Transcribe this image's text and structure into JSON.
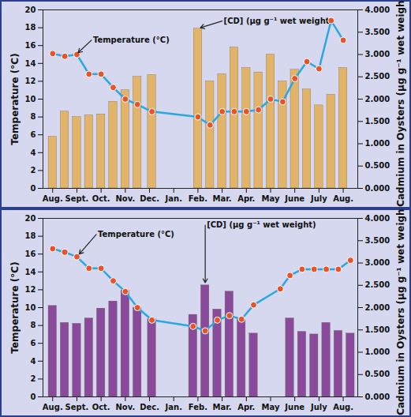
{
  "chart_data": [
    {
      "type": "combo",
      "x": [
        0,
        0.5,
        1,
        1.5,
        2,
        2.5,
        3,
        3.5,
        4.1,
        6.0,
        6.5,
        7.0,
        7.5,
        8.0,
        8.5,
        9.0,
        9.5,
        10.0,
        10.5,
        11.0,
        11.5,
        12.0
      ],
      "xlim": [
        -0.4,
        12.6
      ],
      "xticks": [
        {
          "value": 0,
          "label": "Aug."
        },
        {
          "value": 1,
          "label": "Sept."
        },
        {
          "value": 2,
          "label": "Oct."
        },
        {
          "value": 3,
          "label": "Nov."
        },
        {
          "value": 4,
          "label": "Dec."
        },
        {
          "value": 5,
          "label": "Jan."
        },
        {
          "value": 6,
          "label": "Feb."
        },
        {
          "value": 7,
          "label": "Mar."
        },
        {
          "value": 8,
          "label": "Apr."
        },
        {
          "value": 9,
          "label": "May"
        },
        {
          "value": 10,
          "label": "June"
        },
        {
          "value": 11,
          "label": "July"
        },
        {
          "value": 12,
          "label": "Aug."
        }
      ],
      "ylabel": "Temperature (°C)",
      "ylim": [
        0,
        20
      ],
      "yticks": [
        0,
        2,
        4,
        6,
        8,
        10,
        12,
        14,
        16,
        18,
        20
      ],
      "y2label": "Cadmium in Oysters (µg g⁻¹ wet weight)",
      "y2lim": [
        0,
        4
      ],
      "y2ticks": [
        {
          "value": 0,
          "label": "0.000"
        },
        {
          "value": 0.5,
          "label": "0.500"
        },
        {
          "value": 1,
          "label": "1.000"
        },
        {
          "value": 1.5,
          "label": "1.500"
        },
        {
          "value": 2,
          "label": "2.000"
        },
        {
          "value": 2.5,
          "label": "2.500"
        },
        {
          "value": 3,
          "label": "3.000"
        },
        {
          "value": 3.5,
          "label": "3.500"
        },
        {
          "value": 4,
          "label": "4.000"
        }
      ],
      "series": [
        {
          "name": "[CD] (µg g⁻¹ wet weight)",
          "type": "bar",
          "axis": "y2",
          "color": "#e2b46a",
          "values": [
            1.16,
            1.72,
            1.6,
            1.64,
            1.66,
            1.94,
            2.2,
            2.5,
            2.54,
            3.58,
            2.4,
            2.56,
            3.16,
            2.7,
            2.6,
            3.0,
            2.4,
            2.66,
            2.22,
            1.86,
            2.1,
            2.7
          ]
        },
        {
          "name": "Temperature (°C)",
          "type": "line",
          "color": "#2aa8df",
          "marker": "circle",
          "line_style": "solid",
          "values": [
            15.1,
            14.8,
            15.0,
            12.8,
            12.8,
            11.3,
            10.0,
            9.4,
            8.6,
            8.0,
            7.1,
            8.6,
            8.6,
            8.6,
            8.8,
            10.0,
            9.7,
            12.3,
            14.2,
            13.4,
            18.8,
            16.6
          ]
        }
      ],
      "annotations": [
        {
          "text": "Temperature (°C)",
          "axis": "y",
          "x": 1.6,
          "y": 16.6,
          "arrow_x": 1.05,
          "arrow_y": 15.2
        },
        {
          "text": "[CD] (µg g⁻¹ wet weight)",
          "axis": "y2",
          "x": 7.0,
          "y": 3.75,
          "arrow_x": 6.1,
          "arrow_y": 3.6
        }
      ]
    },
    {
      "type": "combo",
      "x": [
        0,
        0.5,
        1,
        1.5,
        2,
        2.5,
        3,
        3.5,
        4.1,
        5.8,
        6.3,
        6.8,
        7.3,
        7.8,
        8.3,
        9.4,
        9.8,
        10.3,
        10.8,
        11.3,
        11.8,
        12.3
      ],
      "xlim": [
        -0.4,
        12.6
      ],
      "xticks": [
        {
          "value": 0,
          "label": "Aug."
        },
        {
          "value": 1,
          "label": "Sept."
        },
        {
          "value": 2,
          "label": "Oct."
        },
        {
          "value": 3,
          "label": "Nov."
        },
        {
          "value": 4,
          "label": "Dec."
        },
        {
          "value": 5,
          "label": "Jan."
        },
        {
          "value": 6,
          "label": "Feb."
        },
        {
          "value": 7,
          "label": "Mar."
        },
        {
          "value": 8,
          "label": "Apr."
        },
        {
          "value": 9,
          "label": "May"
        },
        {
          "value": 10,
          "label": "June"
        },
        {
          "value": 11,
          "label": "July"
        },
        {
          "value": 12,
          "label": "Aug."
        }
      ],
      "ylabel": "Temperature (°C)",
      "ylim": [
        0,
        20
      ],
      "yticks": [
        0,
        2,
        4,
        6,
        8,
        10,
        12,
        14,
        16,
        18,
        20
      ],
      "y2label": "Cadmium in Oysters (µg g⁻¹ wet weight)",
      "y2lim": [
        0,
        4
      ],
      "y2ticks": [
        {
          "value": 0,
          "label": "0.000"
        },
        {
          "value": 0.5,
          "label": "0.500"
        },
        {
          "value": 1,
          "label": "1.000"
        },
        {
          "value": 1.5,
          "label": "1.500"
        },
        {
          "value": 2,
          "label": "2.000"
        },
        {
          "value": 2.5,
          "label": "2.500"
        },
        {
          "value": 3,
          "label": "3.000"
        },
        {
          "value": 3.5,
          "label": "3.500"
        },
        {
          "value": 4,
          "label": "4.000"
        }
      ],
      "series": [
        {
          "name": "[CD] (µg g⁻¹ wet weight)",
          "type": "bar",
          "axis": "y2",
          "color": "#8a4a9c",
          "values": [
            2.04,
            1.66,
            1.64,
            1.76,
            1.98,
            2.14,
            2.38,
            2.0,
            1.74,
            1.84,
            2.5,
            1.96,
            2.36,
            1.72,
            1.42,
            null,
            1.76,
            1.46,
            1.4,
            1.66,
            1.48,
            1.42
          ]
        },
        {
          "name": "Temperature (°C)",
          "type": "line",
          "color": "#2aa8df",
          "marker": "circle",
          "line_style": "solid",
          "values": [
            16.6,
            16.2,
            15.7,
            14.4,
            14.4,
            13.0,
            11.8,
            10.0,
            8.6,
            7.9,
            7.4,
            8.6,
            9.1,
            8.7,
            10.3,
            12.1,
            13.6,
            14.3,
            14.3,
            14.3,
            14.3,
            15.3
          ]
        }
      ],
      "annotations": [
        {
          "text": "Temperature (°C)",
          "axis": "y",
          "x": 1.8,
          "y": 18.2,
          "arrow_x": 1.1,
          "arrow_y": 16.0
        },
        {
          "text": "[CD] (µg g⁻¹ wet weight)",
          "axis": "y2",
          "x": 6.3,
          "y": 3.85,
          "arrow_x": 6.3,
          "arrow_y": 2.56
        }
      ]
    }
  ]
}
